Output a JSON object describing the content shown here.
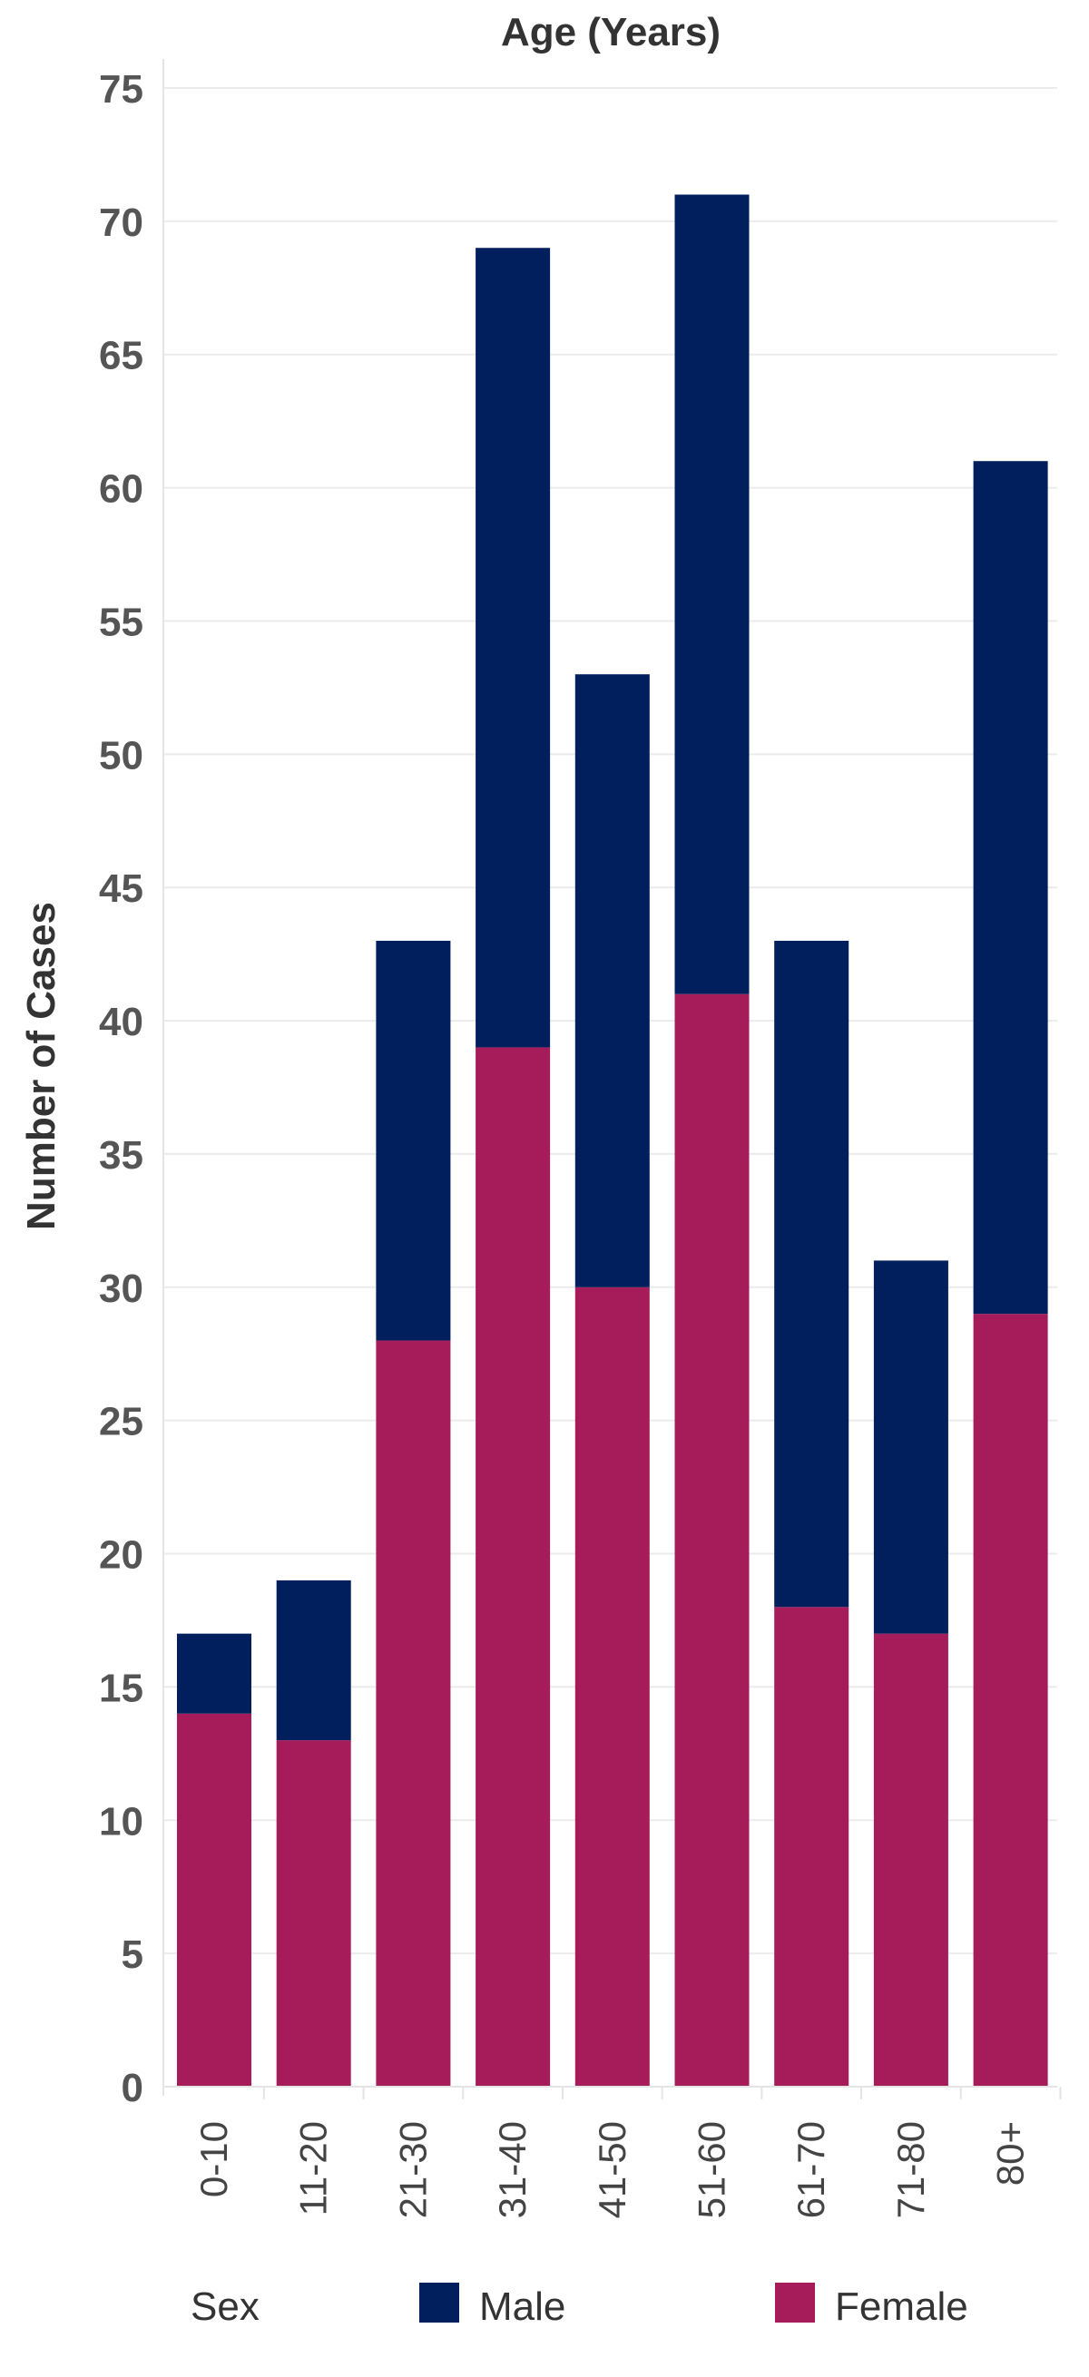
{
  "chart_data": {
    "type": "bar",
    "stacked": true,
    "title": "Age (Years)",
    "xlabel": "",
    "ylabel": "Number of Cases",
    "categories": [
      "0-10",
      "11-20",
      "21-30",
      "31-40",
      "41-50",
      "51-60",
      "61-70",
      "71-80",
      "80+"
    ],
    "series": [
      {
        "name": "Female",
        "values": [
          14,
          13,
          28,
          39,
          30,
          41,
          18,
          17,
          29
        ]
      },
      {
        "name": "Male",
        "values": [
          3,
          6,
          15,
          30,
          23,
          30,
          25,
          14,
          32
        ]
      }
    ],
    "totals": [
      17,
      19,
      43,
      69,
      53,
      71,
      43,
      31,
      61
    ],
    "ylim": [
      0,
      75
    ],
    "yticks": [
      0,
      5,
      10,
      15,
      20,
      25,
      30,
      35,
      40,
      45,
      50,
      55,
      60,
      65,
      70,
      75
    ],
    "grid": true,
    "legend": {
      "title": "Sex",
      "placement": "bottom",
      "order": [
        "Male",
        "Female"
      ]
    },
    "colors": {
      "Male": "#001f5c",
      "Female": "#a61c5b",
      "grid": "#ebebeb"
    }
  }
}
